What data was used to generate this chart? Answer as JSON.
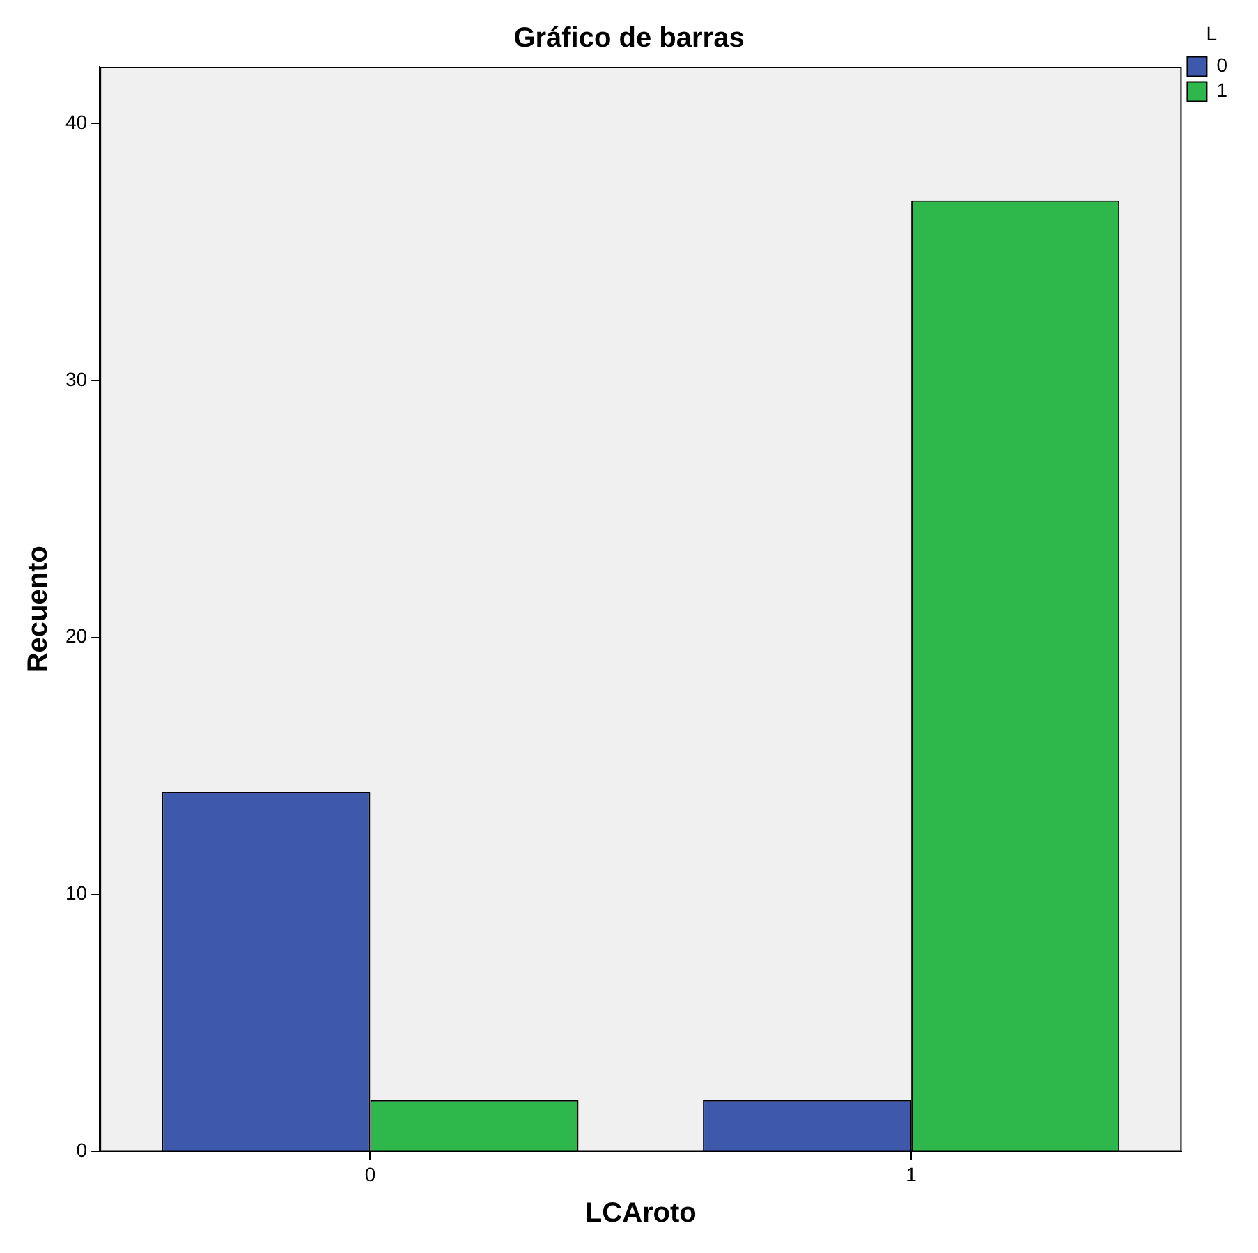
{
  "chart_data": {
    "type": "bar",
    "title": "Gráfico de barras",
    "xlabel": "LCAroto",
    "ylabel": "Recuento",
    "legend_title": "L",
    "categories": [
      "0",
      "1"
    ],
    "series": [
      {
        "name": "0",
        "color": "#3e58ac",
        "values": [
          14,
          2
        ]
      },
      {
        "name": "1",
        "color": "#2eb84b",
        "values": [
          2,
          37
        ]
      }
    ],
    "ylim": [
      0,
      42.2
    ],
    "yticks": [
      0,
      10,
      20,
      30,
      40
    ],
    "legend": "top right"
  }
}
